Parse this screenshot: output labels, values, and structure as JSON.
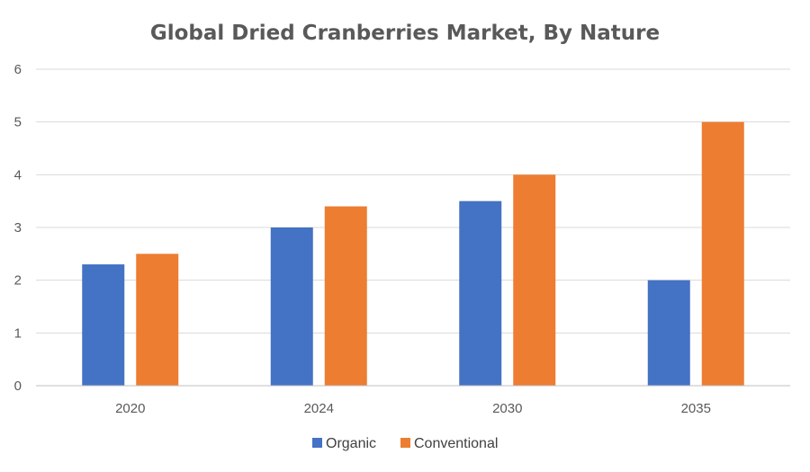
{
  "chart_data": {
    "type": "bar",
    "title": "Global Dried Cranberries Market, By Nature",
    "xlabel": "",
    "ylabel": "",
    "categories": [
      "2020",
      "2024",
      "2030",
      "2035"
    ],
    "series": [
      {
        "name": "Organic",
        "values": [
          2.3,
          3.0,
          3.5,
          2.0
        ],
        "color": "#4472c4"
      },
      {
        "name": "Conventional",
        "values": [
          2.5,
          3.4,
          4.0,
          5.0
        ],
        "color": "#ed7d31"
      }
    ],
    "ylim": [
      0,
      6
    ],
    "yticks": [
      "0",
      "1",
      "2",
      "3",
      "4",
      "5",
      "6"
    ],
    "grid": true,
    "legend": "bottom"
  }
}
